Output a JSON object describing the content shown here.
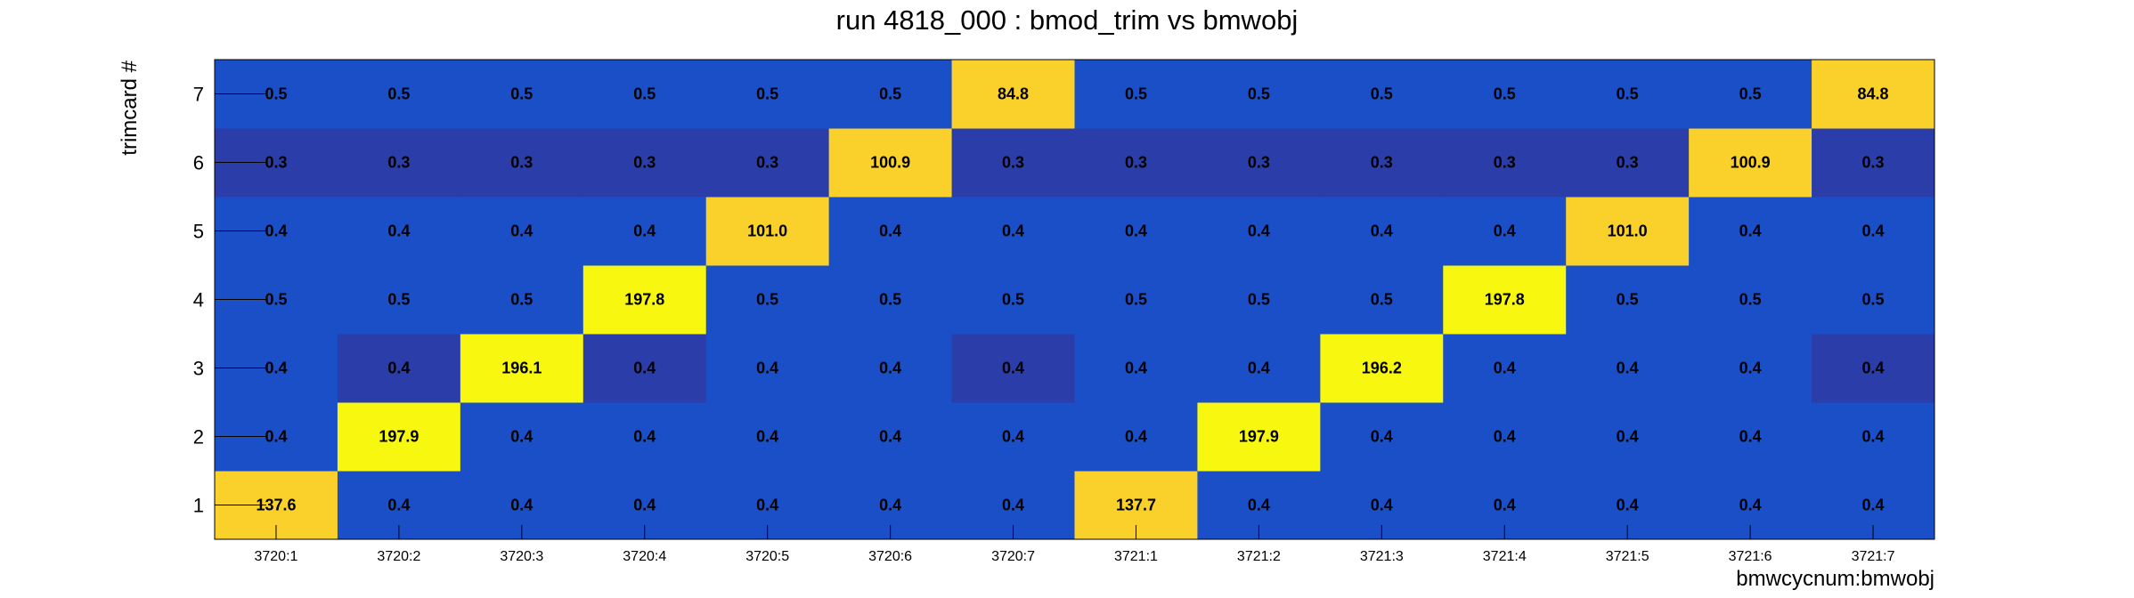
{
  "chart_data": {
    "type": "heatmap",
    "title": "run 4818_000 : bmod_trim vs bmwobj",
    "xlabel": "bmwcycnum:bmwobj",
    "ylabel": "trimcard #",
    "x_categories": [
      "3720:1",
      "3720:2",
      "3720:3",
      "3720:4",
      "3720:5",
      "3720:6",
      "3720:7",
      "3721:1",
      "3721:2",
      "3721:3",
      "3721:4",
      "3721:5",
      "3721:6",
      "3721:7"
    ],
    "y_categories": [
      "1",
      "2",
      "3",
      "4",
      "5",
      "6",
      "7"
    ],
    "values": [
      [
        137.6,
        0.4,
        0.4,
        0.4,
        0.4,
        0.4,
        0.4,
        137.7,
        0.4,
        0.4,
        0.4,
        0.4,
        0.4,
        0.4
      ],
      [
        0.4,
        197.9,
        0.4,
        0.4,
        0.4,
        0.4,
        0.4,
        0.4,
        197.9,
        0.4,
        0.4,
        0.4,
        0.4,
        0.4
      ],
      [
        0.4,
        0.4,
        196.1,
        0.4,
        0.4,
        0.4,
        0.4,
        0.4,
        0.4,
        196.2,
        0.4,
        0.4,
        0.4,
        0.4
      ],
      [
        0.5,
        0.5,
        0.5,
        197.8,
        0.5,
        0.5,
        0.5,
        0.5,
        0.5,
        0.5,
        197.8,
        0.5,
        0.5,
        0.5
      ],
      [
        0.4,
        0.4,
        0.4,
        0.4,
        101.0,
        0.4,
        0.4,
        0.4,
        0.4,
        0.4,
        0.4,
        101.0,
        0.4,
        0.4
      ],
      [
        0.3,
        0.3,
        0.3,
        0.3,
        0.3,
        100.9,
        0.3,
        0.3,
        0.3,
        0.3,
        0.3,
        0.3,
        100.9,
        0.3
      ],
      [
        0.5,
        0.5,
        0.5,
        0.5,
        0.5,
        0.5,
        84.8,
        0.5,
        0.5,
        0.5,
        0.5,
        0.5,
        0.5,
        84.8
      ]
    ],
    "dark_cells": [
      [
        2,
        1
      ],
      [
        2,
        3
      ],
      [
        2,
        6
      ],
      [
        2,
        13
      ]
    ],
    "colors": {
      "low": "#1a4fc8",
      "low_dark": "#2a3da8",
      "high": "#f7f710",
      "mid": "#f9d12a"
    },
    "grid": false,
    "legend": "none"
  }
}
